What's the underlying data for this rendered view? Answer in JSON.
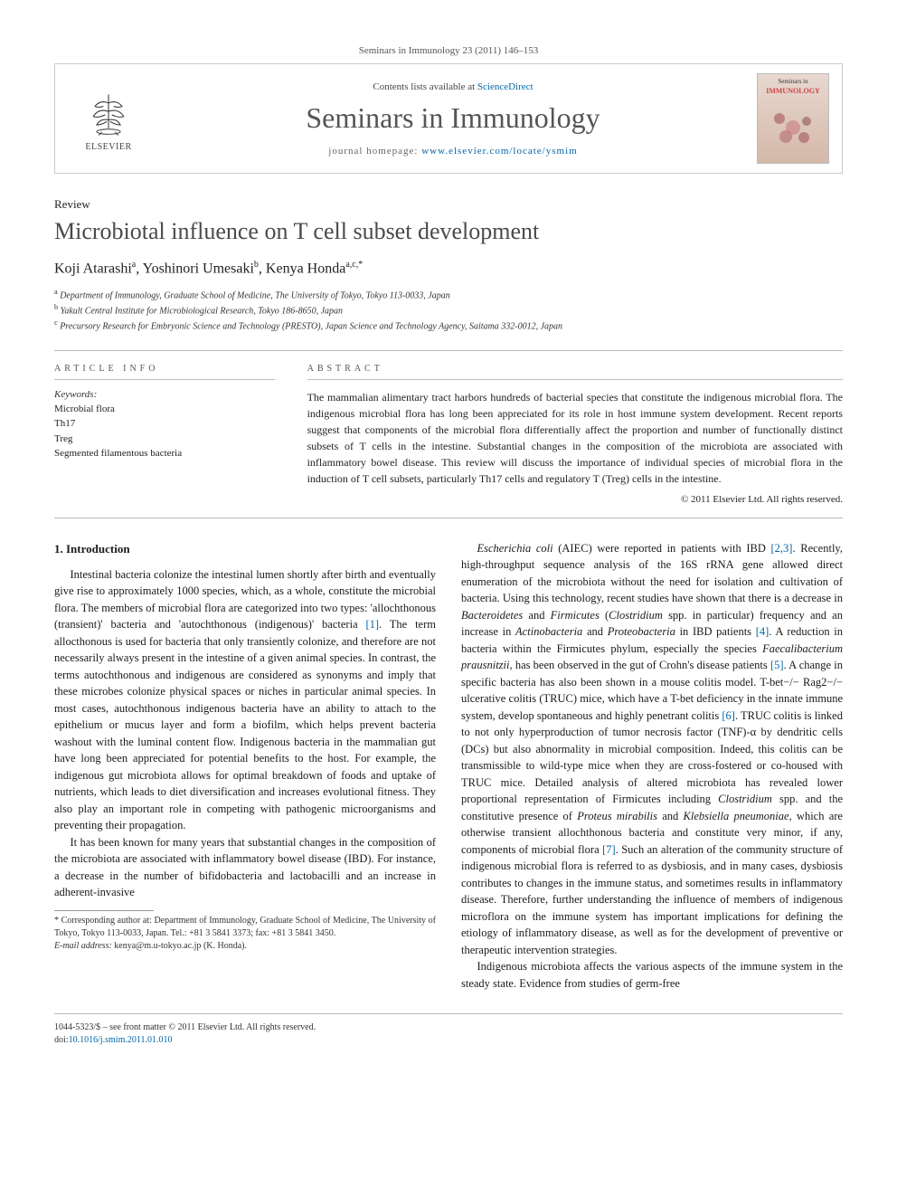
{
  "header": {
    "citation": "Seminars in Immunology 23 (2011) 146–153",
    "contents_prefix": "Contents lists available at ",
    "contents_link": "ScienceDirect",
    "journal_name": "Seminars in Immunology",
    "homepage_prefix": "journal homepage: ",
    "homepage_url": "www.elsevier.com/locate/ysmim",
    "elsevier_label": "ELSEVIER",
    "cover_line1": "Seminars in",
    "cover_line2": "IMMUNOLOGY"
  },
  "article": {
    "type": "Review",
    "title": "Microbiotal influence on T cell subset development",
    "authors_html": "Koji Atarashi<sup>a</sup>, Yoshinori Umesaki<sup>b</sup>, Kenya Honda<sup>a,c,*</sup>",
    "affiliations": [
      "a Department of Immunology, Graduate School of Medicine, The University of Tokyo, Tokyo 113-0033, Japan",
      "b Yakult Central Institute for Microbiological Research, Tokyo 186-8650, Japan",
      "c Precursory Research for Embryonic Science and Technology (PRESTO), Japan Science and Technology Agency, Saitama 332-0012, Japan"
    ]
  },
  "info": {
    "heading": "ARTICLE INFO",
    "keywords_label": "Keywords:",
    "keywords": [
      "Microbial flora",
      "Th17",
      "Treg",
      "Segmented filamentous bacteria"
    ]
  },
  "abstract": {
    "heading": "ABSTRACT",
    "text": "The mammalian alimentary tract harbors hundreds of bacterial species that constitute the indigenous microbial flora. The indigenous microbial flora has long been appreciated for its role in host immune system development. Recent reports suggest that components of the microbial flora differentially affect the proportion and number of functionally distinct subsets of T cells in the intestine. Substantial changes in the composition of the microbiota are associated with inflammatory bowel disease. This review will discuss the importance of individual species of microbial flora in the induction of T cell subsets, particularly Th17 cells and regulatory T (Treg) cells in the intestine.",
    "copyright": "© 2011 Elsevier Ltd. All rights reserved."
  },
  "body": {
    "section_heading": "1. Introduction",
    "p1": "Intestinal bacteria colonize the intestinal lumen shortly after birth and eventually give rise to approximately 1000 species, which, as a whole, constitute the microbial flora. The members of microbial flora are categorized into two types: 'allochthonous (transient)' bacteria and 'autochthonous (indigenous)' bacteria [1]. The term allocthonous is used for bacteria that only transiently colonize, and therefore are not necessarily always present in the intestine of a given animal species. In contrast, the terms autochthonous and indigenous are considered as synonyms and imply that these microbes colonize physical spaces or niches in particular animal species. In most cases, autochthonous indigenous bacteria have an ability to attach to the epithelium or mucus layer and form a biofilm, which helps prevent bacteria washout with the luminal content flow. Indigenous bacteria in the mammalian gut have long been appreciated for potential benefits to the host. For example, the indigenous gut microbiota allows for optimal breakdown of foods and uptake of nutrients, which leads to diet diversification and increases evolutional fitness. They also play an important role in competing with pathogenic microorganisms and preventing their propagation.",
    "p2": "It has been known for many years that substantial changes in the composition of the microbiota are associated with inflammatory bowel disease (IBD). For instance, a decrease in the number of bifidobacteria and lactobacilli and an increase in adherent-invasive",
    "p3_part1": "Escherichia coli",
    "p3_part2": " (AIEC) were reported in patients with IBD [2,3]. Recently, high-throughput sequence analysis of the 16S rRNA gene allowed direct enumeration of the microbiota without the need for isolation and cultivation of bacteria. Using this technology, recent studies have shown that there is a decrease in ",
    "p3_part3": "Bacteroidetes",
    "p3_part4": " and ",
    "p3_part5": "Firmicutes",
    "p3_part6": " (",
    "p3_part7": "Clostridium",
    "p3_part8": " spp. in particular) frequency and an increase in ",
    "p3_part9": "Actinobacteria",
    "p3_part10": " and ",
    "p3_part11": "Proteobacteria",
    "p3_part12": " in IBD patients [4]. A reduction in bacteria within the Firmicutes phylum, especially the species ",
    "p3_part13": "Faecalibacterium prausnitzii",
    "p3_part14": ", has been observed in the gut of Crohn's disease patients [5]. A change in specific bacteria has also been shown in a mouse colitis model. T-bet−/− Rag2−/− ulcerative colitis (TRUC) mice, which have a T-bet deficiency in the innate immune system, develop spontaneous and highly penetrant colitis [6]. TRUC colitis is linked to not only hyperproduction of tumor necrosis factor (TNF)-α by dendritic cells (DCs) but also abnormality in microbial composition. Indeed, this colitis can be transmissible to wild-type mice when they are cross-fostered or co-housed with TRUC mice. Detailed analysis of altered microbiota has revealed lower proportional representation of Firmicutes including ",
    "p3_part15": "Clostridium",
    "p3_part16": " spp. and the constitutive presence of ",
    "p3_part17": "Proteus mirabilis",
    "p3_part18": " and ",
    "p3_part19": "Klebsiella pneumoniae",
    "p3_part20": ", which are otherwise transient allochthonous bacteria and constitute very minor, if any, components of microbial flora [7]. Such an alteration of the community structure of indigenous microbial flora is referred to as dysbiosis, and in many cases, dysbiosis contributes to changes in the immune status, and sometimes results in inflammatory disease. Therefore, further understanding the influence of members of indigenous microflora on the immune system has important implications for defining the etiology of inflammatory disease, as well as for the development of preventive or therapeutic intervention strategies.",
    "p4": "Indigenous microbiota affects the various aspects of the immune system in the steady state. Evidence from studies of germ-free"
  },
  "footnote": {
    "corresponding": "* Corresponding author at: Department of Immunology, Graduate School of Medicine, The University of Tokyo, Tokyo 113-0033, Japan. Tel.: +81 3 5841 3373; fax: +81 3 5841 3450.",
    "email_label": "E-mail address: ",
    "email": "kenya@m.u-tokyo.ac.jp",
    "email_suffix": " (K. Honda)."
  },
  "footer": {
    "issn": "1044-5323/$ – see front matter © 2011 Elsevier Ltd. All rights reserved.",
    "doi_prefix": "doi:",
    "doi": "10.1016/j.smim.2011.01.010"
  },
  "colors": {
    "link": "#0066aa",
    "text": "#1a1a1a",
    "muted": "#555555",
    "border": "#bbbbbb",
    "journal_title": "#555555",
    "elsevier_orange": "#e67817"
  }
}
